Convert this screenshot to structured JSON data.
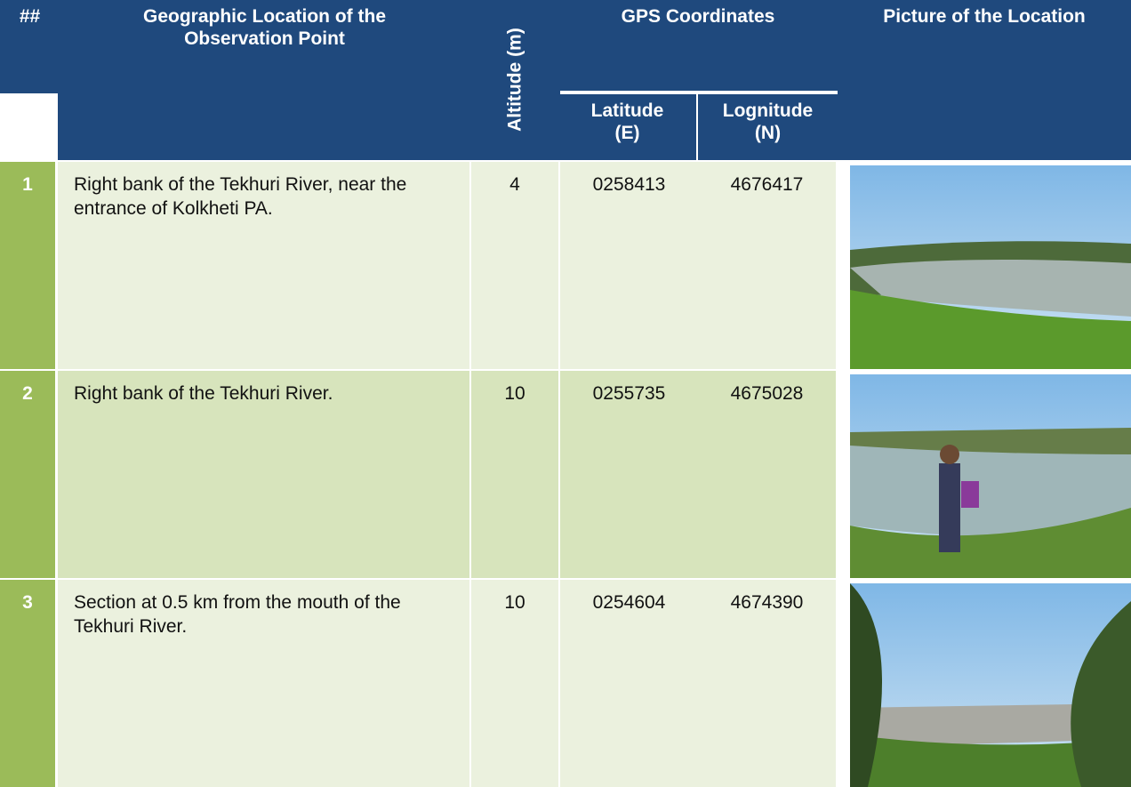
{
  "table": {
    "header": {
      "number": "##",
      "location": "Geographic Location of the Observation Point",
      "altitude": "Altitude (m)",
      "gps": "GPS Coordinates",
      "latitude": "Latitude (E)",
      "longitude": "Lognitude (N)",
      "picture": "Picture of the Location"
    },
    "rows": [
      [
        "1",
        "Right bank of the Tekhuri River, near the entrance of Kolkheti PA.",
        "4",
        "0258413",
        "4676417"
      ],
      [
        "2",
        "Right bank of the Tekhuri River.",
        "10",
        "0255735",
        "4675028"
      ],
      [
        "3",
        "Section at 0.5 km from the mouth of the Tekhuri River.",
        "10",
        "0254604",
        "4674390"
      ]
    ]
  }
}
